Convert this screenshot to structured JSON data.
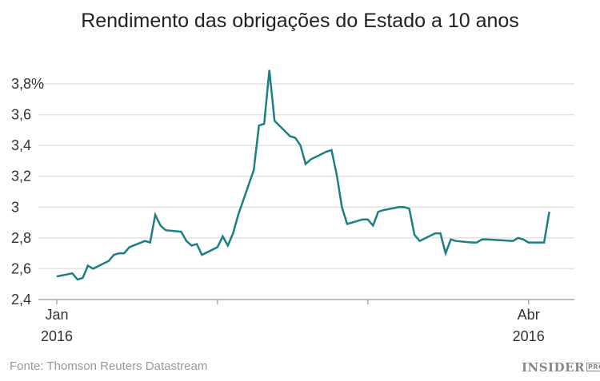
{
  "chart_data": {
    "type": "line",
    "title": "Rendimento das obrigações do Estado a 10 anos",
    "xlabel": "",
    "ylabel": "",
    "ylim": [
      2.4,
      3.8
    ],
    "yticks": [
      2.4,
      2.6,
      2.8,
      3.0,
      3.2,
      3.4,
      3.6,
      3.8
    ],
    "ytick_labels": [
      "2,4",
      "2,6",
      "2,8",
      "3",
      "3,2",
      "3,4",
      "3,6",
      "3,8%"
    ],
    "xlim": [
      "2016-01-01",
      "2016-04-12"
    ],
    "xticks": [
      {
        "date": "2016-01-01",
        "label_top": "Jan",
        "label_bottom": "2016"
      },
      {
        "date": "2016-02-01",
        "label_top": "",
        "label_bottom": ""
      },
      {
        "date": "2016-03-01",
        "label_top": "",
        "label_bottom": ""
      },
      {
        "date": "2016-04-01",
        "label_top": "Abr",
        "label_bottom": "2016"
      }
    ],
    "grid": "horizontal",
    "line_color": "#1b7f83",
    "series": [
      {
        "x": [
          "2016-01-01",
          "2016-01-04",
          "2016-01-05",
          "2016-01-06",
          "2016-01-07",
          "2016-01-08",
          "2016-01-11",
          "2016-01-12",
          "2016-01-13",
          "2016-01-14",
          "2016-01-15",
          "2016-01-18",
          "2016-01-19",
          "2016-01-20",
          "2016-01-21",
          "2016-01-22",
          "2016-01-25",
          "2016-01-26",
          "2016-01-27",
          "2016-01-28",
          "2016-01-29",
          "2016-02-01",
          "2016-02-02",
          "2016-02-03",
          "2016-02-04",
          "2016-02-05",
          "2016-02-08",
          "2016-02-09",
          "2016-02-10",
          "2016-02-11",
          "2016-02-12",
          "2016-02-15",
          "2016-02-16",
          "2016-02-17",
          "2016-02-18",
          "2016-02-19",
          "2016-02-22",
          "2016-02-23",
          "2016-02-24",
          "2016-02-25",
          "2016-02-26",
          "2016-02-29",
          "2016-03-01",
          "2016-03-02",
          "2016-03-03",
          "2016-03-04",
          "2016-03-07",
          "2016-03-08",
          "2016-03-09",
          "2016-03-10",
          "2016-03-11",
          "2016-03-14",
          "2016-03-15",
          "2016-03-16",
          "2016-03-17",
          "2016-03-18",
          "2016-03-21",
          "2016-03-22",
          "2016-03-23",
          "2016-03-24",
          "2016-03-29",
          "2016-03-30",
          "2016-03-31",
          "2016-04-01",
          "2016-04-04",
          "2016-04-05"
        ],
        "y": [
          2.55,
          2.57,
          2.53,
          2.54,
          2.62,
          2.6,
          2.65,
          2.69,
          2.7,
          2.7,
          2.74,
          2.78,
          2.77,
          2.95,
          2.88,
          2.85,
          2.84,
          2.78,
          2.75,
          2.76,
          2.69,
          2.74,
          2.81,
          2.75,
          2.83,
          2.95,
          3.24,
          3.53,
          3.54,
          3.89,
          3.56,
          3.46,
          3.45,
          3.4,
          3.28,
          3.31,
          3.36,
          3.37,
          3.21,
          3.0,
          2.89,
          2.92,
          2.92,
          2.88,
          2.97,
          2.98,
          3.0,
          3.0,
          2.99,
          2.82,
          2.78,
          2.83,
          2.83,
          2.7,
          2.79,
          2.78,
          2.77,
          2.77,
          2.79,
          2.79,
          2.78,
          2.8,
          2.79,
          2.77,
          2.77,
          2.97
        ]
      }
    ],
    "source": "Fonte: Thomson Reuters Datastream",
    "logo": "INSIDER PRO"
  }
}
